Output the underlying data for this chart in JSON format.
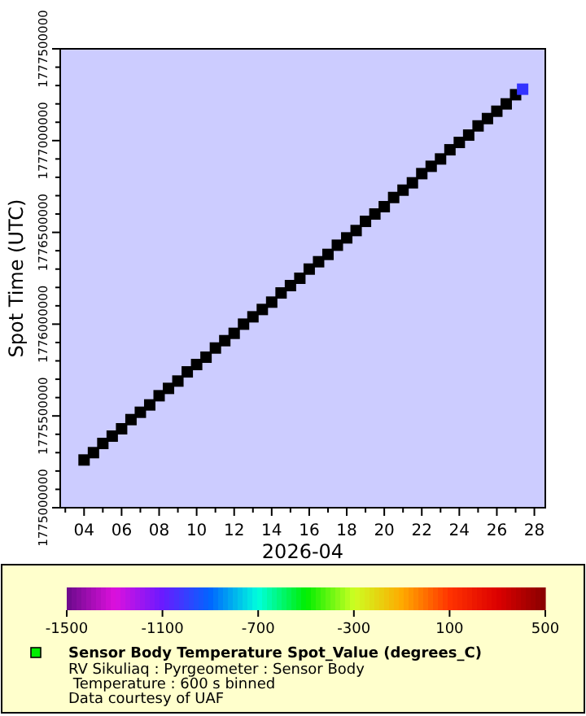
{
  "chart_data": {
    "type": "scatter",
    "xlabel": "2026-04",
    "ylabel": "Spot Time (UTC)",
    "clabel": "Sensor Body Temperature Spot_Value (degrees_C)",
    "annotations": [
      "RV Sikuliaq : Pyrgeometer : Sensor Body Temperature : 600 s binned",
      "Data courtesy of UAF"
    ],
    "marker": "square",
    "grid": false,
    "xlim": [
      "2026-04-02T17:30",
      "2026-04-28T14:00"
    ],
    "xticks": [
      {
        "value": "2026-04-03",
        "label": null
      },
      {
        "value": "2026-04-04",
        "label": "04"
      },
      {
        "value": "2026-04-05",
        "label": null
      },
      {
        "value": "2026-04-06",
        "label": "06"
      },
      {
        "value": "2026-04-07",
        "label": null
      },
      {
        "value": "2026-04-08",
        "label": "08"
      },
      {
        "value": "2026-04-09",
        "label": null
      },
      {
        "value": "2026-04-10",
        "label": "10"
      },
      {
        "value": "2026-04-11",
        "label": null
      },
      {
        "value": "2026-04-12",
        "label": "12"
      },
      {
        "value": "2026-04-13",
        "label": null
      },
      {
        "value": "2026-04-14",
        "label": "14"
      },
      {
        "value": "2026-04-15",
        "label": null
      },
      {
        "value": "2026-04-16",
        "label": "16"
      },
      {
        "value": "2026-04-17",
        "label": null
      },
      {
        "value": "2026-04-18",
        "label": "18"
      },
      {
        "value": "2026-04-19",
        "label": null
      },
      {
        "value": "2026-04-20",
        "label": "20"
      },
      {
        "value": "2026-04-21",
        "label": null
      },
      {
        "value": "2026-04-22",
        "label": "22"
      },
      {
        "value": "2026-04-23",
        "label": null
      },
      {
        "value": "2026-04-24",
        "label": "24"
      },
      {
        "value": "2026-04-25",
        "label": null
      },
      {
        "value": "2026-04-26",
        "label": "26"
      },
      {
        "value": "2026-04-27",
        "label": null
      },
      {
        "value": "2026-04-28",
        "label": "28"
      }
    ],
    "ylim": [
      1775000000,
      1777500000
    ],
    "yticks": [
      1775000000,
      {
        "value": 1775100000,
        "label": null
      },
      {
        "value": 1775200000,
        "label": null
      },
      {
        "value": 1775300000,
        "label": null
      },
      {
        "value": 1775400000,
        "label": null
      },
      1775500000,
      {
        "value": 1775600000,
        "label": null
      },
      {
        "value": 1775700000,
        "label": null
      },
      {
        "value": 1775800000,
        "label": null
      },
      {
        "value": 1775900000,
        "label": null
      },
      1776000000,
      {
        "value": 1776100000,
        "label": null
      },
      {
        "value": 1776200000,
        "label": null
      },
      {
        "value": 1776300000,
        "label": null
      },
      {
        "value": 1776400000,
        "label": null
      },
      1776500000,
      {
        "value": 1776600000,
        "label": null
      },
      {
        "value": 1776700000,
        "label": null
      },
      {
        "value": 1776800000,
        "label": null
      },
      {
        "value": 1776900000,
        "label": null
      },
      1777000000,
      {
        "value": 1777100000,
        "label": null
      },
      {
        "value": 1777200000,
        "label": null
      },
      {
        "value": 1777300000,
        "label": null
      },
      {
        "value": 1777400000,
        "label": null
      },
      1777500000
    ],
    "clim": [
      -1500,
      500
    ],
    "cticks": [
      -1500,
      -1100,
      -700,
      -300,
      100,
      500
    ],
    "series": [
      {
        "color": "#000000",
        "x": [
          "2026-04-04T00:00",
          "2026-04-04T12:00",
          "2026-04-05T00:00",
          "2026-04-05T12:00",
          "2026-04-06T00:00",
          "2026-04-06T12:00",
          "2026-04-07T00:00",
          "2026-04-07T12:00",
          "2026-04-08T00:00",
          "2026-04-08T12:00",
          "2026-04-09T00:00",
          "2026-04-09T12:00",
          "2026-04-10T00:00",
          "2026-04-10T12:00",
          "2026-04-11T00:00",
          "2026-04-11T12:00",
          "2026-04-12T00:00",
          "2026-04-12T12:00",
          "2026-04-13T00:00",
          "2026-04-13T12:00",
          "2026-04-14T00:00",
          "2026-04-14T12:00",
          "2026-04-15T00:00",
          "2026-04-15T12:00",
          "2026-04-16T00:00",
          "2026-04-16T12:00",
          "2026-04-17T00:00",
          "2026-04-17T12:00",
          "2026-04-18T00:00",
          "2026-04-18T12:00",
          "2026-04-19T00:00",
          "2026-04-19T12:00",
          "2026-04-20T00:00",
          "2026-04-20T12:00",
          "2026-04-21T00:00",
          "2026-04-21T12:00",
          "2026-04-22T00:00",
          "2026-04-22T12:00",
          "2026-04-23T00:00",
          "2026-04-23T12:00",
          "2026-04-24T00:00",
          "2026-04-24T12:00",
          "2026-04-25T00:00",
          "2026-04-25T12:00",
          "2026-04-26T00:00",
          "2026-04-26T12:00",
          "2026-04-27T00:00"
        ],
        "values": [
          1775260000,
          1775300000,
          1775350000,
          1775390000,
          1775430000,
          1775480000,
          1775520000,
          1775560000,
          1775610000,
          1775650000,
          1775690000,
          1775740000,
          1775780000,
          1775820000,
          1775870000,
          1775910000,
          1775950000,
          1776000000,
          1776040000,
          1776080000,
          1776120000,
          1776170000,
          1776210000,
          1776250000,
          1776300000,
          1776340000,
          1776380000,
          1776430000,
          1776470000,
          1776510000,
          1776560000,
          1776600000,
          1776640000,
          1776690000,
          1776730000,
          1776770000,
          1776820000,
          1776860000,
          1776900000,
          1776950000,
          1776990000,
          1777030000,
          1777080000,
          1777120000,
          1777160000,
          1777200000,
          1777250000
        ]
      },
      {
        "x": [
          "2026-04-27T09:00"
        ],
        "values": [
          1777280000
        ],
        "color": "#3333ff"
      }
    ]
  }
}
